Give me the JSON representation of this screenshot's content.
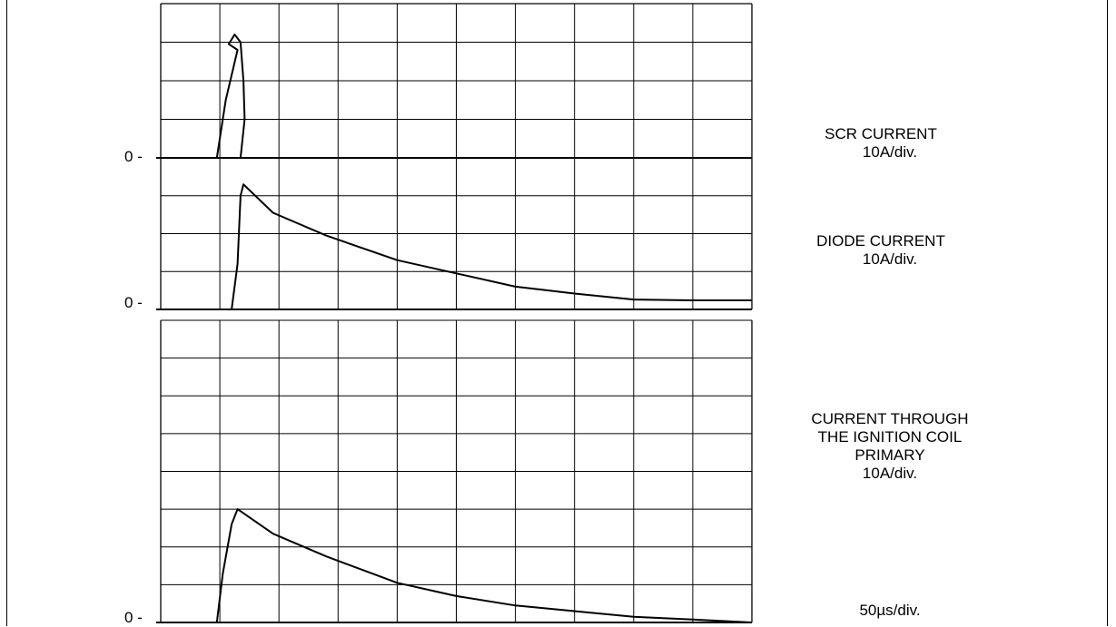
{
  "chart_data": [
    {
      "type": "line",
      "series": [
        {
          "name": "SCR CURRENT",
          "scale": "10A/div.",
          "x": [
            0,
            0.95,
            1.1,
            1.3,
            1.15,
            1.25,
            1.35,
            1.4,
            1.42,
            1.35,
            1.3,
            1.3,
            10
          ],
          "y": [
            0,
            0,
            1.5,
            2.8,
            2.95,
            3.2,
            3.0,
            2.0,
            1.0,
            0.0,
            0.0,
            0.0,
            0
          ]
        }
      ],
      "xlim": [
        0,
        10
      ],
      "ylim": [
        0,
        4
      ]
    },
    {
      "type": "line",
      "series": [
        {
          "name": "DIODE CURRENT",
          "scale": "10A/div.",
          "x": [
            0,
            1.2,
            1.3,
            1.35,
            1.4,
            1.9,
            2.8,
            4,
            5,
            6,
            7,
            8,
            9,
            10
          ],
          "y": [
            0,
            0,
            1.2,
            3.0,
            3.3,
            2.55,
            1.95,
            1.3,
            0.95,
            0.6,
            0.42,
            0.26,
            0.24,
            0.24
          ]
        }
      ],
      "xlim": [
        0,
        10
      ],
      "ylim": [
        0,
        4
      ]
    },
    {
      "type": "line",
      "series": [
        {
          "name": "CURRENT THROUGH THE IGNITION COIL PRIMARY",
          "scale": "10A/div.",
          "x": [
            0,
            0.95,
            1.05,
            1.2,
            1.3,
            1.9,
            2.8,
            4,
            5,
            6,
            7,
            8,
            9,
            10
          ],
          "y": [
            0,
            0,
            1.3,
            2.6,
            3.0,
            2.35,
            1.75,
            1.05,
            0.7,
            0.45,
            0.3,
            0.15,
            0.08,
            0.0
          ]
        }
      ],
      "xlim": [
        0,
        10
      ],
      "ylim": [
        0,
        8
      ]
    }
  ],
  "zero_label": "0 -",
  "labels": {
    "scr_title": "SCR CURRENT",
    "scr_scale": "10A/div.",
    "diode_title": "DIODE CURRENT",
    "diode_scale": "10A/div.",
    "coil_line1": "CURRENT THROUGH",
    "coil_line2": "THE IGNITION COIL",
    "coil_line3": "PRIMARY",
    "coil_scale": "10A/div.",
    "time_base": "50µs/div."
  }
}
